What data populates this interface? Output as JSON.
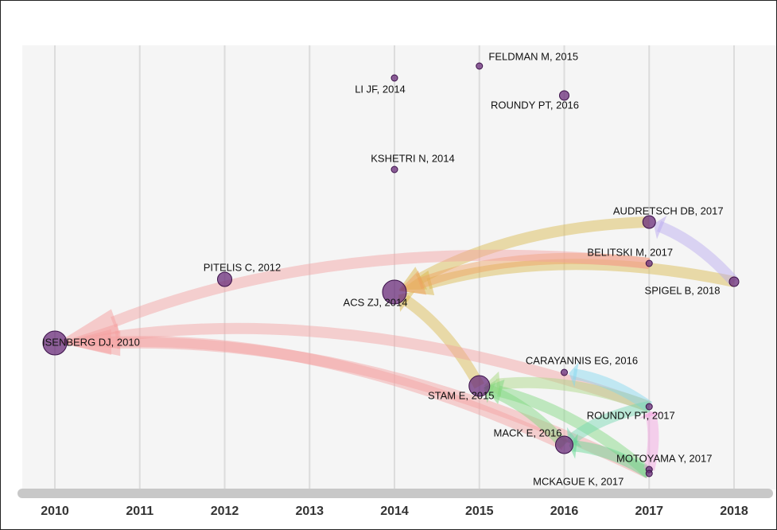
{
  "chart_data": {
    "type": "network",
    "xlim": [
      2010,
      2018
    ],
    "xticks": [
      2010,
      2011,
      2012,
      2013,
      2014,
      2015,
      2016,
      2017,
      2018
    ],
    "grid": true,
    "node_color": "#6a2c7a",
    "nodes": [
      {
        "label": "FELDMAN M, 2015",
        "x": 2015
      },
      {
        "label": "LI JF, 2014",
        "x": 2014
      },
      {
        "label": "ROUNDY PT, 2016",
        "x": 2016
      },
      {
        "label": "KSHETRI N, 2014",
        "x": 2014
      },
      {
        "label": "AUDRETSCH DB, 2017",
        "x": 2017
      },
      {
        "label": "BELITSKI M, 2017",
        "x": 2017
      },
      {
        "label": "PITELIS C, 2012",
        "x": 2012
      },
      {
        "label": "SPIGEL B, 2018",
        "x": 2018
      },
      {
        "label": "ACS ZJ, 2014",
        "x": 2014
      },
      {
        "label": "ISENBERG DJ, 2010",
        "x": 2010
      },
      {
        "label": "CARAYANNIS EG, 2016",
        "x": 2016
      },
      {
        "label": "STAM E, 2015",
        "x": 2015
      },
      {
        "label": "ROUNDY PT, 2017",
        "x": 2017
      },
      {
        "label": "MACK E, 2016",
        "x": 2016
      },
      {
        "label": "MOTOYAMA Y, 2017",
        "x": 2017
      },
      {
        "label": "MCKAGUE K, 2017",
        "x": 2017
      }
    ],
    "edges": [
      {
        "source": 4,
        "target": 8,
        "color": "#d9b84a"
      },
      {
        "source": 7,
        "target": 8,
        "color": "#d9b84a"
      },
      {
        "source": 11,
        "target": 8,
        "color": "#d9b84a"
      },
      {
        "source": 5,
        "target": 8,
        "color": "#f0a060"
      },
      {
        "source": 7,
        "target": 4,
        "color": "#b9a8f0"
      },
      {
        "source": 5,
        "target": 9,
        "color": "#f5a0a0"
      },
      {
        "source": 12,
        "target": 9,
        "color": "#f5a0a0"
      },
      {
        "source": 13,
        "target": 9,
        "color": "#f5a0a0"
      },
      {
        "source": 15,
        "target": 9,
        "color": "#f5a0a0"
      },
      {
        "source": 13,
        "target": 11,
        "color": "#7dd87d"
      },
      {
        "source": 12,
        "target": 11,
        "color": "#a8d880"
      },
      {
        "source": 15,
        "target": 11,
        "color": "#7dd87d"
      },
      {
        "source": 12,
        "target": 10,
        "color": "#80d8f0"
      },
      {
        "source": 12,
        "target": 13,
        "color": "#70d8b0"
      },
      {
        "source": 15,
        "target": 13,
        "color": "#60d890"
      },
      {
        "source": 14,
        "target": 12,
        "color": "#f5a0e0"
      }
    ]
  }
}
